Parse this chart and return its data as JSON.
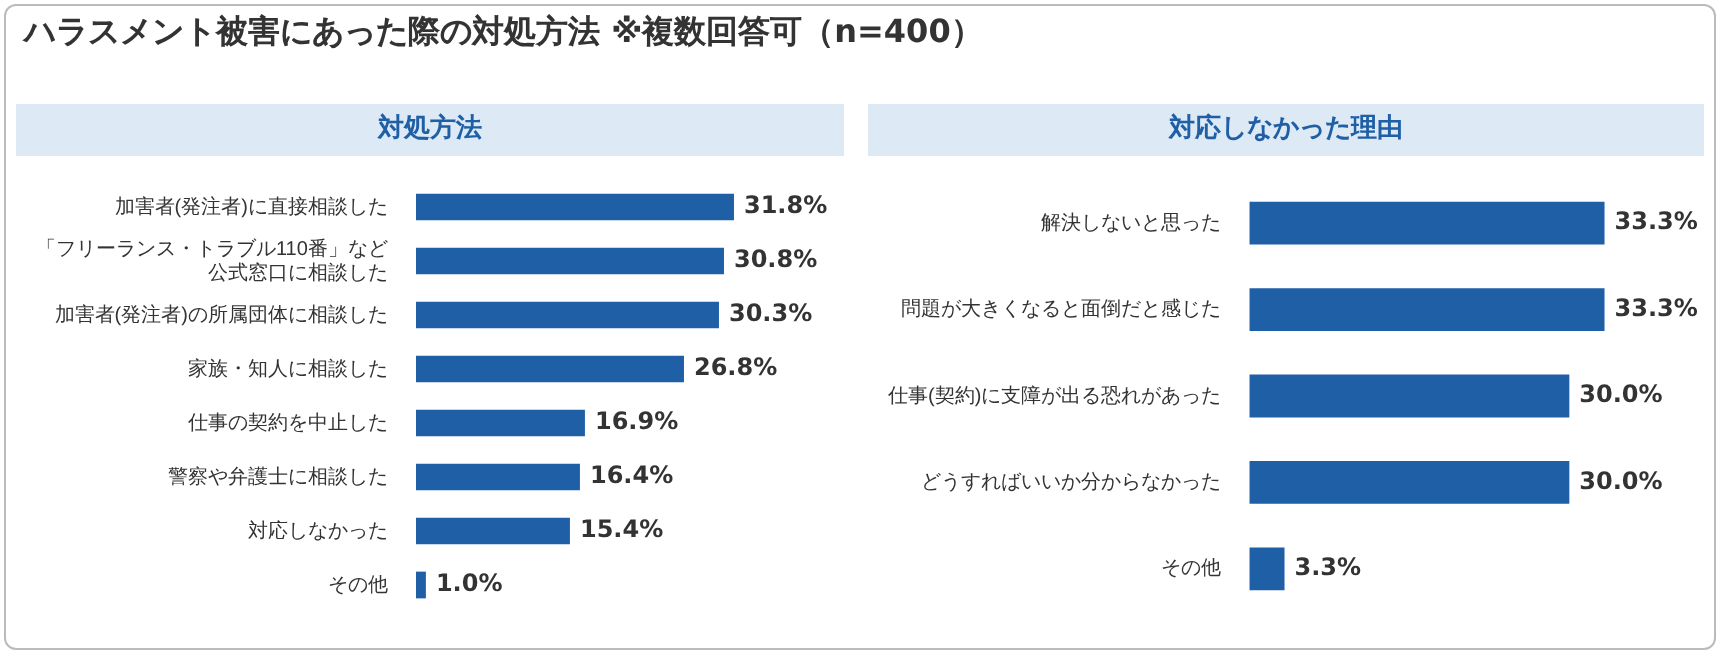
{
  "chart_data": [
    {
      "type": "bar",
      "orientation": "horizontal",
      "title": "対処方法",
      "annotations": [
        "ハラスメント被害にあった際の対処方法 ※複数回答可（n=400）"
      ],
      "categories": [
        "加害者(発注者)に直接相談した",
        "「フリーランス・トラブル110番」など公式窓口に相談した",
        "加害者(発注者)の所属団体に相談した",
        "家族・知人に相談した",
        "仕事の契約を中止した",
        "警察や弁護士に相談した",
        "対応しなかった",
        "その他"
      ],
      "values": [
        31.8,
        30.8,
        30.3,
        26.8,
        16.9,
        16.4,
        15.4,
        1.0
      ],
      "value_labels": [
        "31.8%",
        "30.8%",
        "30.3%",
        "26.8%",
        "16.9%",
        "16.4%",
        "15.4%",
        "1.0%"
      ],
      "color": "#1f5fa6",
      "legend": false
    },
    {
      "type": "bar",
      "orientation": "horizontal",
      "title": "対応しなかった理由",
      "categories": [
        "解決しないと思った",
        "問題が大きくなると面倒だと感じた",
        "仕事(契約)に支障が出る恐れがあった",
        "どうすればいいか分からなかった",
        "その他"
      ],
      "values": [
        33.3,
        33.3,
        30.0,
        30.0,
        3.3
      ],
      "value_labels": [
        "33.3%",
        "33.3%",
        "30.0%",
        "30.0%",
        "3.3%"
      ],
      "color": "#1f5fa6",
      "legend": false
    }
  ]
}
